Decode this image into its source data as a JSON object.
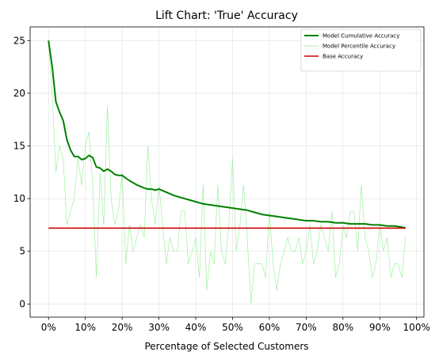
{
  "chart_data": {
    "type": "line",
    "title": "Lift Chart: 'True' Accuracy",
    "xlabel": "Percentage of Selected Customers",
    "ylabel": "",
    "xlim": [
      -0.05,
      1.02
    ],
    "ylim": [
      -1.25,
      26.3
    ],
    "x_ticks": [
      0,
      0.1,
      0.2,
      0.3,
      0.4,
      0.5,
      0.6,
      0.7,
      0.8,
      0.9,
      1.0
    ],
    "x_tick_labels": [
      "0%",
      "10%",
      "20%",
      "30%",
      "40%",
      "50%",
      "60%",
      "70%",
      "80%",
      "90%",
      "100%"
    ],
    "y_ticks": [
      0,
      5,
      10,
      15,
      20,
      25
    ],
    "y_tick_labels": [
      "0",
      "5",
      "10",
      "15",
      "20",
      "25"
    ],
    "grid": true,
    "legend_position": "top-right",
    "series": [
      {
        "name": "Model Cumulative Accuracy",
        "color": "#008000",
        "line_width": 2,
        "x": [
          0,
          0.01,
          0.02,
          0.03,
          0.04,
          0.05,
          0.06,
          0.07,
          0.08,
          0.09,
          0.1,
          0.11,
          0.12,
          0.13,
          0.14,
          0.15,
          0.16,
          0.17,
          0.18,
          0.19,
          0.2,
          0.22,
          0.24,
          0.26,
          0.27,
          0.28,
          0.29,
          0.3,
          0.32,
          0.34,
          0.36,
          0.38,
          0.4,
          0.42,
          0.44,
          0.46,
          0.48,
          0.5,
          0.52,
          0.54,
          0.56,
          0.58,
          0.6,
          0.62,
          0.64,
          0.66,
          0.68,
          0.7,
          0.72,
          0.74,
          0.76,
          0.78,
          0.8,
          0.82,
          0.84,
          0.86,
          0.88,
          0.9,
          0.92,
          0.94,
          0.96,
          0.97
        ],
        "values": [
          25.0,
          22.5,
          19.2,
          18.2,
          17.4,
          15.6,
          14.6,
          14.0,
          14.0,
          13.7,
          13.8,
          14.1,
          13.9,
          13.0,
          12.9,
          12.6,
          12.8,
          12.6,
          12.3,
          12.2,
          12.2,
          11.7,
          11.3,
          11.0,
          10.9,
          10.9,
          10.8,
          10.9,
          10.6,
          10.3,
          10.1,
          9.9,
          9.7,
          9.5,
          9.4,
          9.3,
          9.2,
          9.1,
          9.0,
          8.9,
          8.7,
          8.5,
          8.4,
          8.3,
          8.2,
          8.1,
          8.0,
          7.9,
          7.9,
          7.8,
          7.8,
          7.7,
          7.7,
          7.6,
          7.6,
          7.6,
          7.5,
          7.5,
          7.4,
          7.4,
          7.3,
          7.2
        ]
      },
      {
        "name": "Model Percentile Accuracy",
        "color": "#90ee90",
        "line_width": 0.6,
        "x": [
          0,
          0.01,
          0.02,
          0.03,
          0.04,
          0.05,
          0.06,
          0.07,
          0.08,
          0.09,
          0.1,
          0.11,
          0.12,
          0.13,
          0.14,
          0.15,
          0.16,
          0.17,
          0.18,
          0.19,
          0.2,
          0.21,
          0.22,
          0.23,
          0.24,
          0.25,
          0.26,
          0.27,
          0.28,
          0.29,
          0.3,
          0.31,
          0.32,
          0.33,
          0.34,
          0.35,
          0.36,
          0.37,
          0.38,
          0.39,
          0.4,
          0.41,
          0.42,
          0.43,
          0.44,
          0.45,
          0.46,
          0.47,
          0.48,
          0.49,
          0.5,
          0.51,
          0.52,
          0.53,
          0.54,
          0.55,
          0.56,
          0.57,
          0.58,
          0.59,
          0.6,
          0.61,
          0.62,
          0.63,
          0.64,
          0.65,
          0.66,
          0.67,
          0.68,
          0.69,
          0.7,
          0.71,
          0.72,
          0.73,
          0.74,
          0.75,
          0.76,
          0.77,
          0.78,
          0.79,
          0.8,
          0.81,
          0.82,
          0.83,
          0.84,
          0.85,
          0.86,
          0.87,
          0.88,
          0.89,
          0.9,
          0.91,
          0.92,
          0.93,
          0.94,
          0.95,
          0.96,
          0.97
        ],
        "values": [
          25.0,
          20.0,
          12.5,
          15.0,
          13.8,
          7.5,
          8.8,
          10.0,
          13.8,
          11.3,
          15.0,
          16.3,
          11.3,
          2.5,
          12.5,
          7.5,
          18.8,
          10.0,
          7.5,
          8.8,
          12.5,
          3.8,
          7.5,
          5.0,
          6.3,
          7.5,
          6.3,
          15.0,
          10.0,
          7.5,
          11.3,
          7.5,
          3.8,
          6.3,
          5.0,
          5.0,
          8.8,
          8.8,
          3.8,
          5.0,
          6.3,
          2.5,
          11.3,
          1.3,
          5.0,
          3.8,
          11.3,
          5.0,
          3.8,
          7.5,
          13.8,
          5.0,
          7.5,
          11.3,
          6.3,
          0.0,
          3.8,
          3.8,
          3.8,
          2.5,
          8.8,
          3.8,
          1.3,
          3.8,
          5.0,
          6.3,
          5.0,
          5.0,
          6.3,
          3.8,
          5.0,
          7.5,
          3.8,
          5.0,
          7.5,
          6.3,
          5.0,
          8.8,
          2.5,
          3.8,
          7.5,
          6.3,
          8.8,
          8.8,
          5.0,
          11.3,
          6.3,
          5.0,
          2.5,
          3.8,
          7.5,
          5.0,
          6.3,
          2.5,
          3.8,
          3.8,
          2.5,
          6.3
        ]
      },
      {
        "name": "Base Accuracy",
        "color": "#cc0000",
        "line_width": 1.6,
        "x": [
          0,
          0.97
        ],
        "values": [
          7.2,
          7.2
        ]
      }
    ]
  }
}
